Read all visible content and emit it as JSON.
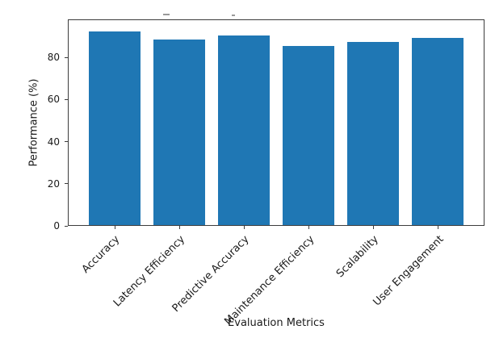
{
  "chart_data": {
    "type": "bar",
    "categories": [
      "Accuracy",
      "Latency Efficiency",
      "Predictive Accuracy",
      "Maintenance Efficiency",
      "Scalability",
      "User Engagement"
    ],
    "values": [
      92,
      88,
      90,
      85,
      87,
      89
    ],
    "xlabel": "Evaluation Metrics",
    "ylabel": "Performance (%)",
    "yticks": [
      0,
      20,
      40,
      60,
      80
    ],
    "ylim": [
      0,
      98
    ],
    "xtick_rotation_deg": 45,
    "bar_color": "#1f77b4",
    "bar_width_fraction": 0.8,
    "grid": false,
    "legend": false
  }
}
